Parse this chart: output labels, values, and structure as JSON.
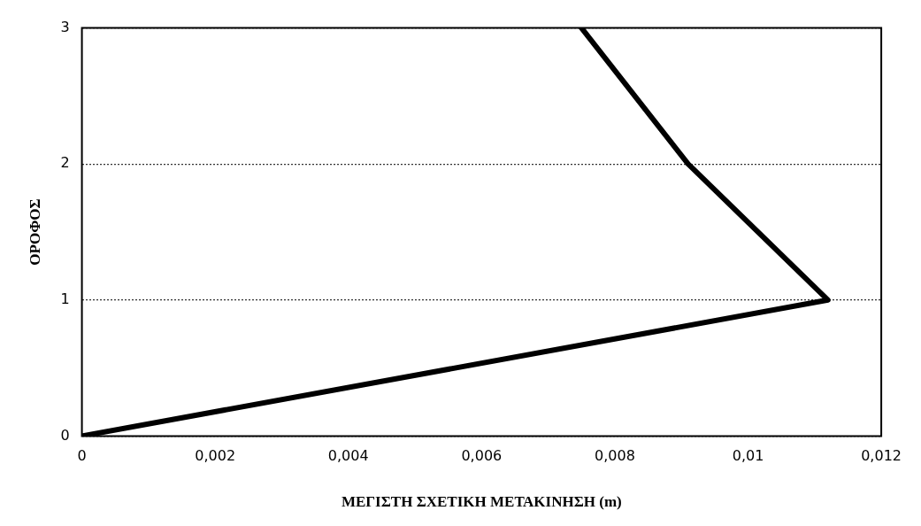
{
  "chart_data": {
    "type": "line",
    "xlabel": "ΜΕΓΙΣΤΗ ΣΧΕΤΙΚΗ ΜΕΤΑΚΙΝΗΣΗ (m)",
    "ylabel": "ΟΡΟΦΟΣ",
    "x": [
      0,
      0.0112,
      0.0091,
      0.0075
    ],
    "series": [
      {
        "color": "#000000",
        "values": [
          0,
          1,
          2,
          3
        ]
      }
    ],
    "xlim": [
      0,
      0.012
    ],
    "xticks": [
      0,
      {
        "value": 0.002,
        "label": "0,002"
      },
      {
        "value": 0.004,
        "label": "0,004"
      },
      {
        "value": 0.006,
        "label": "0,006"
      },
      {
        "value": 0.008,
        "label": "0,008"
      },
      {
        "value": 0.01,
        "label": "0,01"
      },
      {
        "value": 0.012,
        "label": "0,012"
      }
    ],
    "ylim": [
      0,
      3
    ],
    "yticks": [
      0,
      1,
      2,
      3
    ],
    "grid": "y",
    "legend": false,
    "marker": "none",
    "line_style": "solid"
  }
}
